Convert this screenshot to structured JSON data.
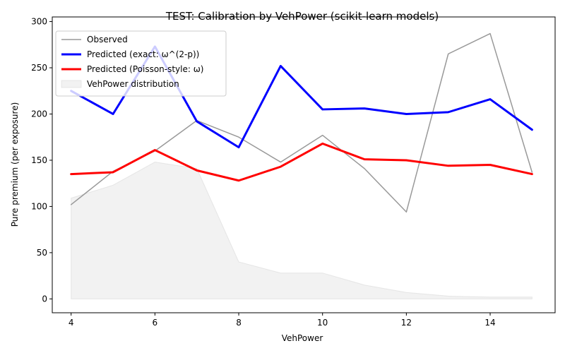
{
  "chart_data": {
    "type": "line",
    "title": "TEST: Calibration by VehPower (scikit-learn models)",
    "xlabel": "VehPower",
    "ylabel": "Pure premium (per exposure)",
    "xlim": [
      3.55,
      15.55
    ],
    "ylim": [
      -15,
      305
    ],
    "xticks": [
      4,
      6,
      8,
      10,
      12,
      14
    ],
    "yticks": [
      0,
      50,
      100,
      150,
      200,
      250,
      300
    ],
    "x": [
      4,
      5,
      6,
      7,
      8,
      9,
      10,
      11,
      12,
      13,
      14,
      15
    ],
    "legend_position": "top-left",
    "grid": false,
    "series": [
      {
        "name": "Observed",
        "kind": "line",
        "color": "#999999",
        "width": 1.5,
        "values": [
          102,
          138,
          160,
          193,
          175,
          148,
          177,
          141,
          94,
          265,
          287,
          137
        ]
      },
      {
        "name": "Predicted (exact: ω^(2-p))",
        "kind": "line",
        "color": "#0000ff",
        "width": 3,
        "values": [
          225,
          200,
          273,
          192,
          164,
          252,
          205,
          206,
          200,
          202,
          216,
          183
        ]
      },
      {
        "name": "Predicted (Poisson-style: ω)",
        "kind": "line",
        "color": "#ff0000",
        "width": 3,
        "values": [
          135,
          137,
          161,
          139,
          128,
          143,
          168,
          151,
          150,
          144,
          145,
          135
        ]
      },
      {
        "name": "VehPower distribution",
        "kind": "area",
        "color": "#d3d3d3",
        "values": [
          109,
          123,
          148,
          141,
          40,
          28,
          28,
          15,
          7,
          3,
          2,
          2
        ]
      }
    ]
  }
}
